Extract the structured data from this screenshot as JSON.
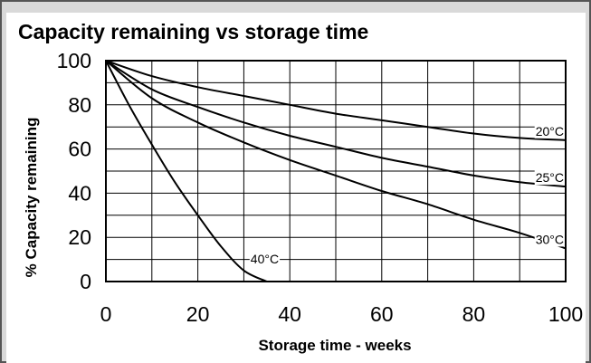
{
  "chart_data": {
    "type": "line",
    "title": "Capacity remaining vs storage time",
    "xlabel": "Storage time - weeks",
    "ylabel": "% Capacity remaining",
    "xlim": [
      0,
      100
    ],
    "ylim": [
      0,
      100
    ],
    "x_ticks": [
      "0",
      "20",
      "40",
      "60",
      "80",
      "100"
    ],
    "y_ticks": [
      "0",
      "20",
      "40",
      "60",
      "80",
      "100"
    ],
    "grid": true,
    "series": [
      {
        "name": "20°C",
        "x": [
          0,
          10,
          20,
          30,
          40,
          50,
          60,
          70,
          80,
          90,
          100
        ],
        "y": [
          100,
          93,
          88,
          84,
          80,
          76,
          73,
          70,
          67,
          65,
          64
        ]
      },
      {
        "name": "25°C",
        "x": [
          0,
          10,
          20,
          30,
          40,
          50,
          60,
          70,
          80,
          90,
          100
        ],
        "y": [
          100,
          87,
          79,
          72,
          66,
          61,
          56,
          52,
          48,
          45,
          43
        ]
      },
      {
        "name": "30°C",
        "x": [
          0,
          10,
          20,
          30,
          40,
          50,
          60,
          70,
          80,
          90,
          100
        ],
        "y": [
          100,
          83,
          72,
          63,
          55,
          48,
          41,
          35,
          28,
          22,
          15
        ]
      },
      {
        "name": "40°C",
        "x": [
          0,
          5,
          10,
          15,
          20,
          25,
          30,
          35
        ],
        "y": [
          100,
          80,
          62,
          45,
          30,
          16,
          5,
          0
        ]
      }
    ]
  }
}
